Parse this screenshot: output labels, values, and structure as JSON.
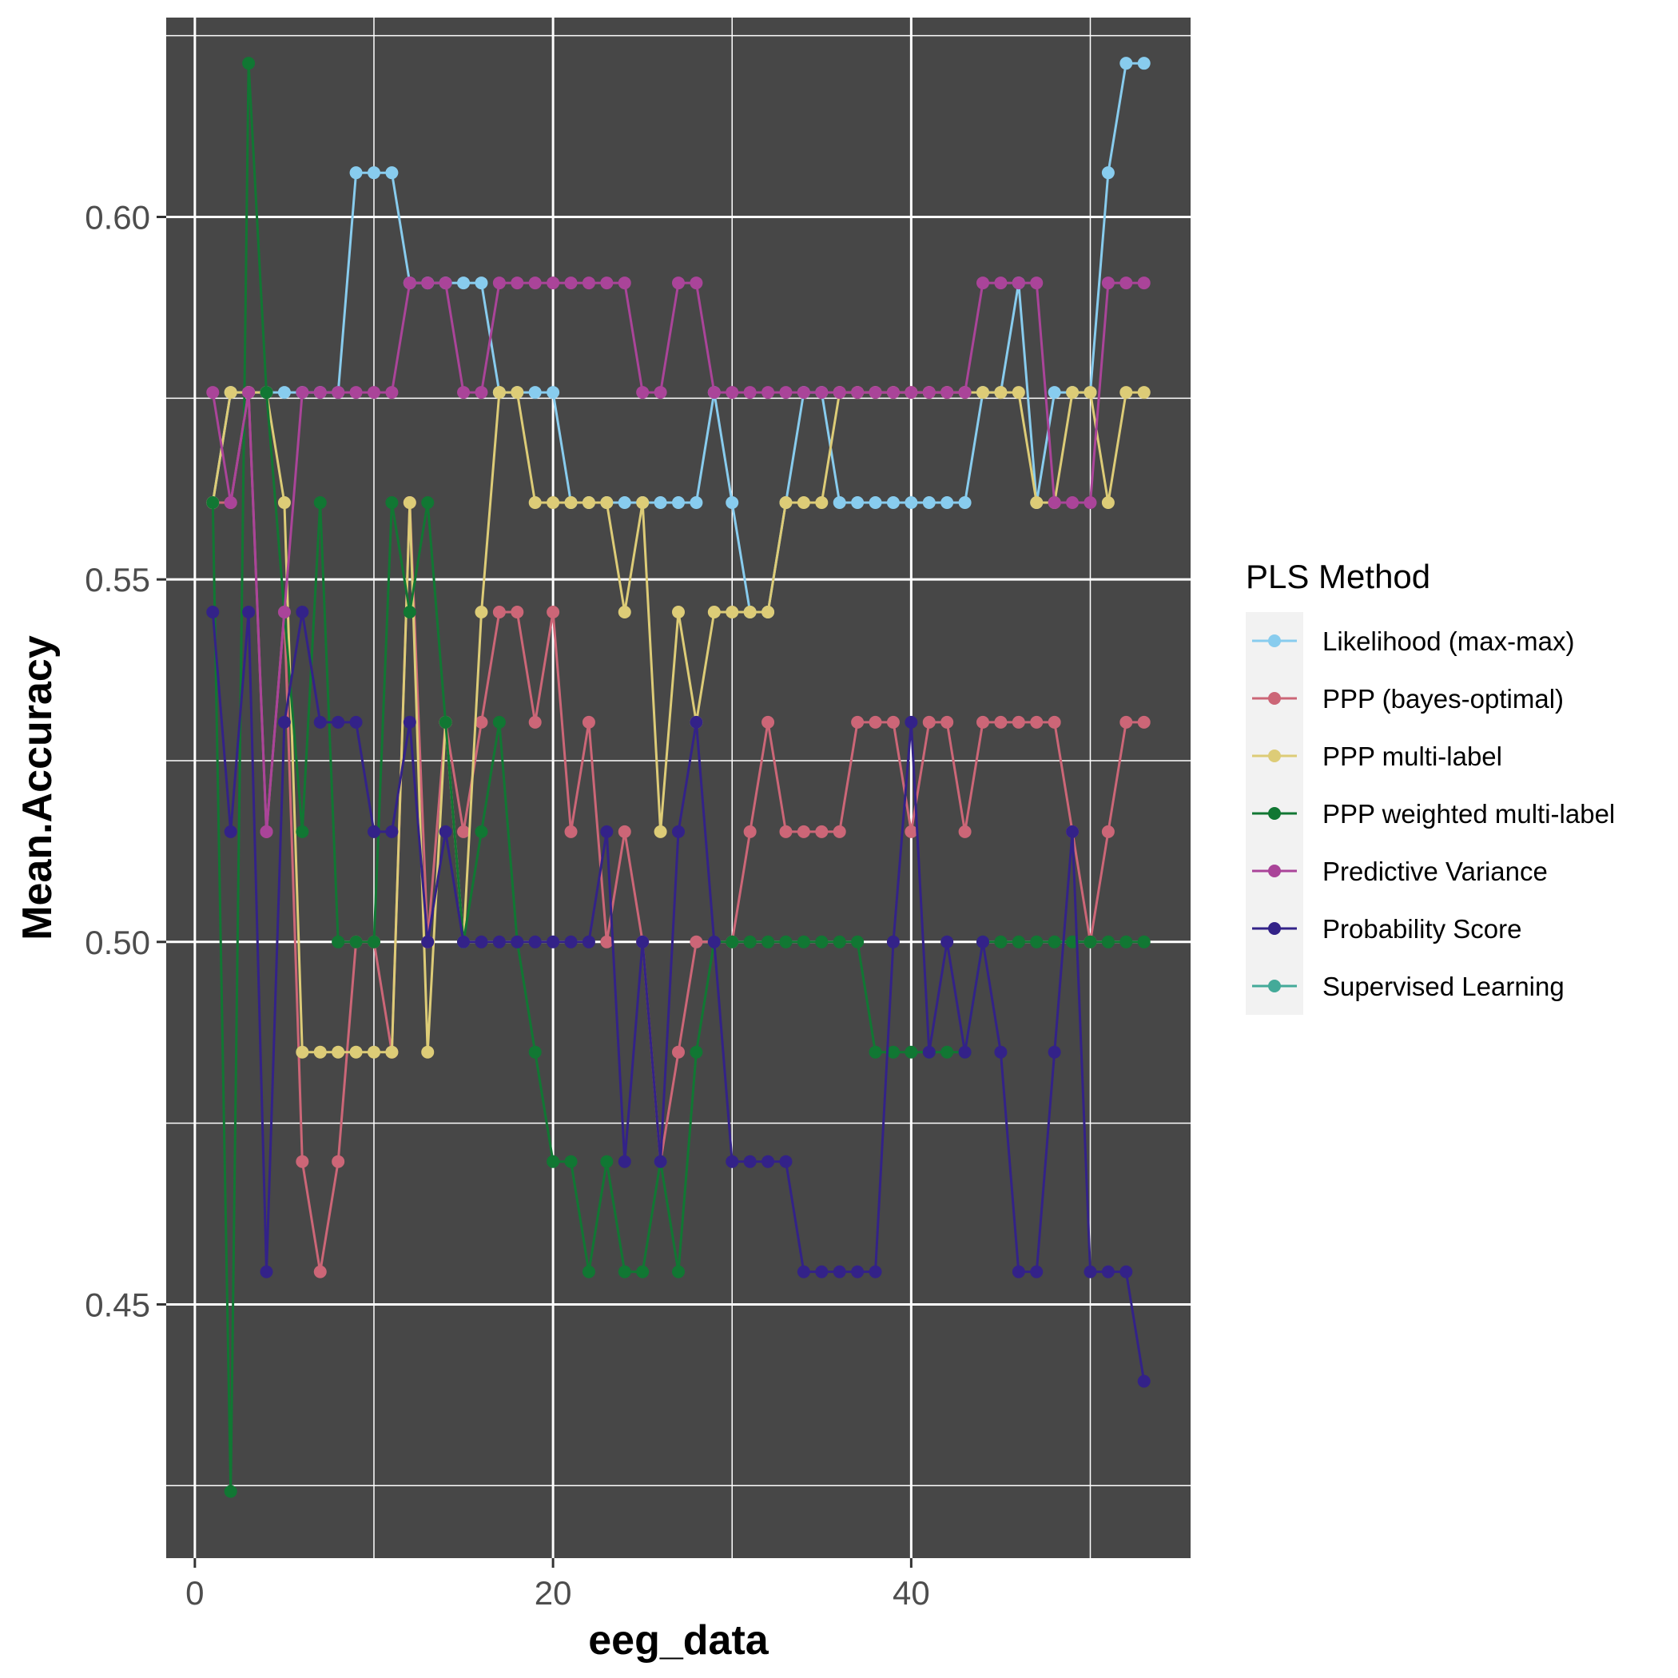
{
  "chart_data": {
    "type": "line",
    "title": "",
    "xlabel": "eeg_data",
    "ylabel": "Mean.Accuracy",
    "xlim": [
      -1.6,
      55.6
    ],
    "ylim": [
      0.415,
      0.6275
    ],
    "x_ticks": [
      0,
      20,
      40
    ],
    "x_tick_labels": [
      "0",
      "20",
      "40"
    ],
    "y_ticks": [
      0.45,
      0.5,
      0.55,
      0.6
    ],
    "y_tick_labels": [
      "0.45",
      "0.50",
      "0.55",
      "0.60"
    ],
    "x_minor_ticks": [
      10,
      30,
      50
    ],
    "y_minor_ticks": [
      0.425,
      0.475,
      0.525,
      0.575,
      0.625
    ],
    "grid": true,
    "panel_background": "#474747",
    "grid_color": "#ffffff",
    "legend": {
      "title": "PLS Method",
      "position": "right",
      "key_background": "#f2f2f2"
    },
    "series": [
      {
        "name": "Likelihood (max-max)",
        "color": "#88ccee",
        "x": [
          1,
          2,
          3,
          4,
          5,
          6,
          7,
          8,
          9,
          10,
          11,
          12,
          13,
          14,
          15,
          16,
          17,
          18,
          19,
          20,
          21,
          22,
          23,
          24,
          25,
          26,
          27,
          28,
          29,
          30,
          31,
          32,
          33,
          34,
          35,
          36,
          37,
          38,
          39,
          40,
          41,
          42,
          43,
          44,
          45,
          46,
          47,
          48,
          49,
          50,
          51,
          52,
          53
        ],
        "values": [
          0.5606,
          0.5758,
          0.5758,
          0.5758,
          0.5758,
          0.5758,
          0.5758,
          0.5758,
          0.6061,
          0.6061,
          0.6061,
          0.5909,
          0.5909,
          0.5909,
          0.5909,
          0.5909,
          0.5758,
          0.5758,
          0.5758,
          0.5758,
          0.5606,
          0.5606,
          0.5606,
          0.5606,
          0.5606,
          0.5606,
          0.5606,
          0.5606,
          0.5758,
          0.5606,
          0.5455,
          0.5455,
          0.5606,
          0.5758,
          0.5758,
          0.5606,
          0.5606,
          0.5606,
          0.5606,
          0.5606,
          0.5606,
          0.5606,
          0.5606,
          0.5758,
          0.5758,
          0.5909,
          0.5606,
          0.5758,
          0.5758,
          0.5758,
          0.6061,
          0.6212,
          0.6212
        ]
      },
      {
        "name": "PPP (bayes-optimal)",
        "color": "#cc6677",
        "x": [
          1,
          2,
          3,
          4,
          5,
          6,
          7,
          8,
          9,
          10,
          11,
          12,
          13,
          14,
          15,
          16,
          17,
          18,
          19,
          20,
          21,
          22,
          23,
          24,
          25,
          26,
          27,
          28,
          29,
          30,
          31,
          32,
          33,
          34,
          35,
          36,
          37,
          38,
          39,
          40,
          41,
          42,
          43,
          44,
          45,
          46,
          47,
          48,
          49,
          50,
          51,
          52,
          53
        ],
        "values": [
          0.5606,
          0.5606,
          0.5758,
          0.5152,
          0.5455,
          0.4697,
          0.4545,
          0.4697,
          0.5,
          0.5,
          0.4848,
          0.5606,
          0.5,
          0.5303,
          0.5152,
          0.5303,
          0.5455,
          0.5455,
          0.5303,
          0.5455,
          0.5152,
          0.5303,
          0.5,
          0.5152,
          0.5,
          0.4697,
          0.4848,
          0.5,
          0.5,
          0.5,
          0.5152,
          0.5303,
          0.5152,
          0.5152,
          0.5152,
          0.5152,
          0.5303,
          0.5303,
          0.5303,
          0.5152,
          0.5303,
          0.5303,
          0.5152,
          0.5303,
          0.5303,
          0.5303,
          0.5303,
          0.5303,
          0.5152,
          0.5,
          0.5152,
          0.5303,
          0.5303
        ]
      },
      {
        "name": "PPP multi-label",
        "color": "#ddcc77",
        "x": [
          1,
          2,
          3,
          4,
          5,
          6,
          7,
          8,
          9,
          10,
          11,
          12,
          13,
          14,
          15,
          16,
          17,
          18,
          19,
          20,
          21,
          22,
          23,
          24,
          25,
          26,
          27,
          28,
          29,
          30,
          31,
          32,
          33,
          34,
          35,
          36,
          37,
          38,
          39,
          40,
          41,
          42,
          43,
          44,
          45,
          46,
          47,
          48,
          49,
          50,
          51,
          52,
          53
        ],
        "values": [
          0.5606,
          0.5758,
          0.5758,
          0.5758,
          0.5606,
          0.4848,
          0.4848,
          0.4848,
          0.4848,
          0.4848,
          0.4848,
          0.5606,
          0.4848,
          0.5303,
          0.5,
          0.5455,
          0.5758,
          0.5758,
          0.5606,
          0.5606,
          0.5606,
          0.5606,
          0.5606,
          0.5455,
          0.5606,
          0.5152,
          0.5455,
          0.5303,
          0.5455,
          0.5455,
          0.5455,
          0.5455,
          0.5606,
          0.5606,
          0.5606,
          0.5758,
          0.5758,
          0.5758,
          0.5758,
          0.5758,
          0.5758,
          0.5758,
          0.5758,
          0.5758,
          0.5758,
          0.5758,
          0.5606,
          0.5606,
          0.5758,
          0.5758,
          0.5606,
          0.5758,
          0.5758
        ]
      },
      {
        "name": "PPP weighted multi-label",
        "color": "#117733",
        "x": [
          1,
          2,
          3,
          4,
          5,
          6,
          7,
          8,
          9,
          10,
          11,
          12,
          13,
          14,
          15,
          16,
          17,
          18,
          19,
          20,
          21,
          22,
          23,
          24,
          25,
          26,
          27,
          28,
          29,
          30,
          31,
          32,
          33,
          34,
          35,
          36,
          37,
          38,
          39,
          40,
          41,
          42,
          43,
          44,
          45,
          46,
          47,
          48,
          49,
          50,
          51,
          52,
          53
        ],
        "values": [
          0.5606,
          0.4242,
          0.6212,
          0.5758,
          0.5455,
          0.5152,
          0.5606,
          0.5,
          0.5,
          0.5,
          0.5606,
          0.5455,
          0.5606,
          0.5303,
          0.5,
          0.5152,
          0.5303,
          0.5,
          0.4848,
          0.4697,
          0.4697,
          0.4545,
          0.4697,
          0.4545,
          0.4545,
          0.4697,
          0.4545,
          0.4848,
          0.5,
          0.5,
          0.5,
          0.5,
          0.5,
          0.5,
          0.5,
          0.5,
          0.5,
          0.4848,
          0.4848,
          0.4848,
          0.4848,
          0.4848,
          0.4848,
          0.5,
          0.5,
          0.5,
          0.5,
          0.5,
          0.5,
          0.5,
          0.5,
          0.5,
          0.5
        ]
      },
      {
        "name": "Predictive Variance",
        "color": "#aa4499",
        "x": [
          1,
          2,
          3,
          4,
          5,
          6,
          7,
          8,
          9,
          10,
          11,
          12,
          13,
          14,
          15,
          16,
          17,
          18,
          19,
          20,
          21,
          22,
          23,
          24,
          25,
          26,
          27,
          28,
          29,
          30,
          31,
          32,
          33,
          34,
          35,
          36,
          37,
          38,
          39,
          40,
          41,
          42,
          43,
          44,
          45,
          46,
          47,
          48,
          49,
          50,
          51,
          52,
          53
        ],
        "values": [
          0.5758,
          0.5606,
          0.5758,
          0.5152,
          0.5455,
          0.5758,
          0.5758,
          0.5758,
          0.5758,
          0.5758,
          0.5758,
          0.5909,
          0.5909,
          0.5909,
          0.5758,
          0.5758,
          0.5909,
          0.5909,
          0.5909,
          0.5909,
          0.5909,
          0.5909,
          0.5909,
          0.5909,
          0.5758,
          0.5758,
          0.5909,
          0.5909,
          0.5758,
          0.5758,
          0.5758,
          0.5758,
          0.5758,
          0.5758,
          0.5758,
          0.5758,
          0.5758,
          0.5758,
          0.5758,
          0.5758,
          0.5758,
          0.5758,
          0.5758,
          0.5909,
          0.5909,
          0.5909,
          0.5909,
          0.5606,
          0.5606,
          0.5606,
          0.5909,
          0.5909,
          0.5909
        ]
      },
      {
        "name": "Probability Score",
        "color": "#332288",
        "x": [
          1,
          2,
          3,
          4,
          5,
          6,
          7,
          8,
          9,
          10,
          11,
          12,
          13,
          14,
          15,
          16,
          17,
          18,
          19,
          20,
          21,
          22,
          23,
          24,
          25,
          26,
          27,
          28,
          29,
          30,
          31,
          32,
          33,
          34,
          35,
          36,
          37,
          38,
          39,
          40,
          41,
          42,
          43,
          44,
          45,
          46,
          47,
          48,
          49,
          50,
          51,
          52,
          53
        ],
        "values": [
          0.5455,
          0.5152,
          0.5455,
          0.4545,
          0.5303,
          0.5455,
          0.5303,
          0.5303,
          0.5303,
          0.5152,
          0.5152,
          0.5303,
          0.5,
          0.5152,
          0.5,
          0.5,
          0.5,
          0.5,
          0.5,
          0.5,
          0.5,
          0.5,
          0.5152,
          0.4697,
          0.5,
          0.4697,
          0.5152,
          0.5303,
          0.5,
          0.4697,
          0.4697,
          0.4697,
          0.4697,
          0.4545,
          0.4545,
          0.4545,
          0.4545,
          0.4545,
          0.5,
          0.5303,
          0.4848,
          0.5,
          0.4848,
          0.5,
          0.4848,
          0.4545,
          0.4545,
          0.4848,
          0.5152,
          0.4545,
          0.4545,
          0.4545,
          0.4394
        ]
      },
      {
        "name": "Supervised Learning",
        "color": "#44aa99",
        "x": [],
        "values": []
      }
    ]
  }
}
